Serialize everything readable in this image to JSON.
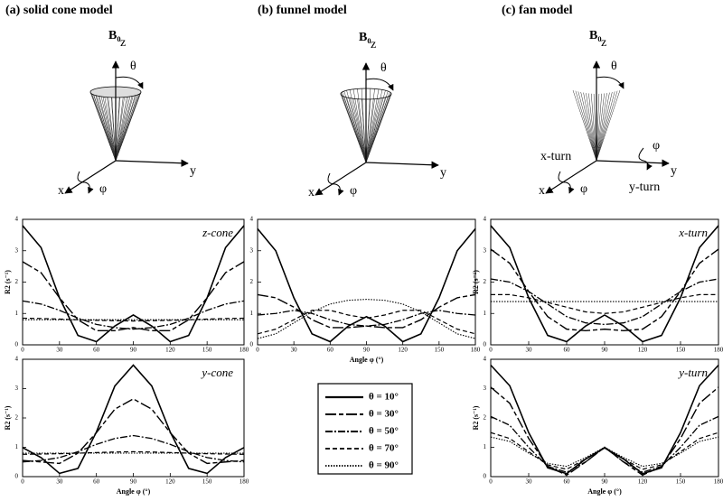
{
  "diagrams": [
    {
      "title": "(a) solid cone model",
      "field": "B₀",
      "z": "z",
      "y": "y",
      "x": "x",
      "theta": "θ",
      "phi": "φ"
    },
    {
      "title": "(b) funnel model",
      "field": "B₀",
      "z": "z",
      "y": "y",
      "x": "x",
      "theta": "θ",
      "phi": "φ"
    },
    {
      "title": "(c) fan model",
      "field": "B₀",
      "z": "z",
      "y": "y",
      "x": "x",
      "theta": "θ",
      "phi": "φ",
      "phi2": "φ",
      "x_turn": "x-turn",
      "y_turn": "y-turn"
    }
  ],
  "chart_data": [
    {
      "type": "line",
      "panel_label": "z-cone",
      "ylabel": "R2 (s⁻¹)",
      "x": [
        0,
        15,
        30,
        45,
        60,
        75,
        90,
        105,
        120,
        135,
        150,
        165,
        180
      ],
      "xlim": [
        0,
        180
      ],
      "xticks": [
        0,
        30,
        60,
        90,
        120,
        150,
        180
      ],
      "ylim": [
        0,
        4
      ],
      "yticks": [
        0,
        1,
        2,
        3,
        4
      ],
      "series": [
        {
          "name": "θ = 10°",
          "color": "#000000",
          "style": "solid",
          "values": [
            3.8,
            3.1,
            1.5,
            0.3,
            0.1,
            0.6,
            0.95,
            0.6,
            0.1,
            0.3,
            1.5,
            3.1,
            3.8
          ]
        },
        {
          "name": "θ = 30°",
          "color": "#000000",
          "style": "longdash",
          "values": [
            2.65,
            2.3,
            1.5,
            0.8,
            0.45,
            0.45,
            0.55,
            0.45,
            0.45,
            0.8,
            1.5,
            2.3,
            2.65
          ]
        },
        {
          "name": "θ = 50°",
          "color": "#000000",
          "style": "dashdot",
          "values": [
            1.4,
            1.3,
            1.1,
            0.85,
            0.65,
            0.55,
            0.5,
            0.55,
            0.65,
            0.85,
            1.1,
            1.3,
            1.4
          ]
        },
        {
          "name": "θ = 70°",
          "color": "#000000",
          "style": "dash",
          "values": [
            0.85,
            0.84,
            0.82,
            0.8,
            0.78,
            0.77,
            0.76,
            0.77,
            0.78,
            0.8,
            0.82,
            0.84,
            0.85
          ]
        },
        {
          "name": "θ = 90°",
          "color": "#000000",
          "style": "dot",
          "values": [
            0.8,
            0.8,
            0.8,
            0.8,
            0.8,
            0.8,
            0.8,
            0.8,
            0.8,
            0.8,
            0.8,
            0.8,
            0.8
          ]
        }
      ]
    },
    {
      "type": "line",
      "xlabel": "Angle φ (°)",
      "x": [
        0,
        15,
        30,
        45,
        60,
        75,
        90,
        105,
        120,
        135,
        150,
        165,
        180
      ],
      "xlim": [
        0,
        180
      ],
      "xticks": [
        0,
        30,
        60,
        90,
        120,
        150,
        180
      ],
      "ylim": [
        0,
        4
      ],
      "yticks": [
        0,
        1,
        2,
        3,
        4
      ],
      "series": [
        {
          "color": "#000000",
          "style": "solid",
          "values": [
            3.7,
            3.0,
            1.5,
            0.35,
            0.1,
            0.6,
            0.9,
            0.6,
            0.1,
            0.35,
            1.5,
            3.0,
            3.7
          ]
        },
        {
          "color": "#000000",
          "style": "longdash",
          "values": [
            1.6,
            1.5,
            1.2,
            0.8,
            0.55,
            0.55,
            0.6,
            0.55,
            0.55,
            0.8,
            1.2,
            1.5,
            1.6
          ]
        },
        {
          "color": "#000000",
          "style": "dashdot",
          "values": [
            0.95,
            1.0,
            1.1,
            1.0,
            0.8,
            0.65,
            0.6,
            0.65,
            0.8,
            1.0,
            1.1,
            1.0,
            0.95
          ]
        },
        {
          "color": "#000000",
          "style": "dash",
          "values": [
            0.35,
            0.5,
            0.8,
            1.1,
            1.1,
            0.95,
            0.85,
            0.95,
            1.1,
            1.1,
            0.8,
            0.5,
            0.35
          ]
        },
        {
          "color": "#000000",
          "style": "dot",
          "values": [
            0.2,
            0.35,
            0.7,
            1.05,
            1.3,
            1.42,
            1.45,
            1.42,
            1.3,
            1.05,
            0.7,
            0.35,
            0.2
          ]
        }
      ]
    },
    {
      "type": "line",
      "panel_label": "x-turn",
      "ylabel": "R2 (s⁻¹)",
      "x": [
        0,
        15,
        30,
        45,
        60,
        75,
        90,
        105,
        120,
        135,
        150,
        165,
        180
      ],
      "xlim": [
        0,
        180
      ],
      "xticks": [
        0,
        30,
        60,
        90,
        120,
        150,
        180
      ],
      "ylim": [
        0,
        4
      ],
      "yticks": [
        0,
        1,
        2,
        3,
        4
      ],
      "series": [
        {
          "color": "#000000",
          "style": "solid",
          "values": [
            3.8,
            3.1,
            1.5,
            0.3,
            0.1,
            0.6,
            0.95,
            0.6,
            0.1,
            0.3,
            1.5,
            3.1,
            3.8
          ]
        },
        {
          "color": "#000000",
          "style": "longdash",
          "values": [
            3.05,
            2.6,
            1.7,
            0.9,
            0.5,
            0.45,
            0.5,
            0.45,
            0.5,
            0.9,
            1.7,
            2.6,
            3.05
          ]
        },
        {
          "color": "#000000",
          "style": "dashdot",
          "values": [
            2.1,
            2.0,
            1.7,
            1.3,
            0.9,
            0.7,
            0.65,
            0.7,
            0.9,
            1.3,
            1.7,
            2.0,
            2.1
          ]
        },
        {
          "color": "#000000",
          "style": "dash",
          "values": [
            1.6,
            1.6,
            1.5,
            1.35,
            1.2,
            1.05,
            1.0,
            1.05,
            1.2,
            1.35,
            1.5,
            1.6,
            1.6
          ]
        },
        {
          "color": "#000000",
          "style": "dot",
          "values": [
            1.38,
            1.38,
            1.38,
            1.38,
            1.38,
            1.38,
            1.38,
            1.38,
            1.38,
            1.38,
            1.38,
            1.38,
            1.38
          ]
        }
      ]
    },
    {
      "type": "line",
      "panel_label": "y-cone",
      "ylabel": "R2 (s⁻¹)",
      "xlabel": "Angle φ (°)",
      "x": [
        0,
        15,
        30,
        45,
        60,
        75,
        90,
        105,
        120,
        135,
        150,
        165,
        180
      ],
      "xlim": [
        0,
        180
      ],
      "xticks": [
        0,
        30,
        60,
        90,
        120,
        150,
        180
      ],
      "ylim": [
        0,
        4
      ],
      "yticks": [
        0,
        1,
        2,
        3,
        4
      ],
      "series": [
        {
          "color": "#000000",
          "style": "solid",
          "values": [
            0.99,
            0.65,
            0.11,
            0.28,
            1.52,
            3.09,
            3.8,
            3.09,
            1.52,
            0.28,
            0.11,
            0.65,
            0.99
          ]
        },
        {
          "color": "#000000",
          "style": "longdash",
          "values": [
            0.55,
            0.5,
            0.45,
            0.8,
            1.5,
            2.3,
            2.65,
            2.3,
            1.5,
            0.8,
            0.45,
            0.5,
            0.55
          ]
        },
        {
          "color": "#000000",
          "style": "dashdot",
          "values": [
            0.5,
            0.55,
            0.65,
            0.85,
            1.1,
            1.3,
            1.4,
            1.3,
            1.1,
            0.85,
            0.65,
            0.55,
            0.5
          ]
        },
        {
          "color": "#000000",
          "style": "dash",
          "values": [
            0.76,
            0.77,
            0.78,
            0.8,
            0.82,
            0.84,
            0.85,
            0.84,
            0.82,
            0.8,
            0.78,
            0.77,
            0.76
          ]
        },
        {
          "color": "#000000",
          "style": "dot",
          "values": [
            0.8,
            0.8,
            0.8,
            0.8,
            0.8,
            0.8,
            0.8,
            0.8,
            0.8,
            0.8,
            0.8,
            0.8,
            0.8
          ]
        }
      ]
    },
    {
      "type": "line",
      "panel_label": "y-turn",
      "ylabel": "R2 (s⁻¹)",
      "xlabel": "Angle φ (°)",
      "x": [
        0,
        15,
        30,
        45,
        60,
        75,
        90,
        105,
        120,
        135,
        150,
        165,
        180
      ],
      "xlim": [
        0,
        180
      ],
      "xticks": [
        0,
        30,
        60,
        90,
        120,
        150,
        180
      ],
      "ylim": [
        0,
        4
      ],
      "yticks": [
        0,
        1,
        2,
        3,
        4
      ],
      "series": [
        {
          "color": "#000000",
          "style": "solid",
          "values": [
            3.8,
            3.1,
            1.5,
            0.3,
            0.1,
            0.6,
            0.98,
            0.6,
            0.1,
            0.3,
            1.5,
            3.1,
            3.8
          ]
        },
        {
          "color": "#000000",
          "style": "longdash",
          "values": [
            3.05,
            2.5,
            1.3,
            0.35,
            0.05,
            0.5,
            1.0,
            0.5,
            0.05,
            0.35,
            1.3,
            2.5,
            3.05
          ]
        },
        {
          "color": "#000000",
          "style": "dashdot",
          "values": [
            2.05,
            1.75,
            1.0,
            0.35,
            0.15,
            0.5,
            1.0,
            0.5,
            0.15,
            0.35,
            1.0,
            1.75,
            2.05
          ]
        },
        {
          "color": "#000000",
          "style": "dash",
          "values": [
            1.5,
            1.3,
            0.85,
            0.4,
            0.25,
            0.6,
            1.0,
            0.6,
            0.25,
            0.4,
            0.85,
            1.3,
            1.5
          ]
        },
        {
          "color": "#000000",
          "style": "dot",
          "values": [
            1.35,
            1.2,
            0.8,
            0.45,
            0.35,
            0.65,
            1.0,
            0.65,
            0.35,
            0.45,
            0.8,
            1.2,
            1.35
          ]
        }
      ]
    }
  ]
}
